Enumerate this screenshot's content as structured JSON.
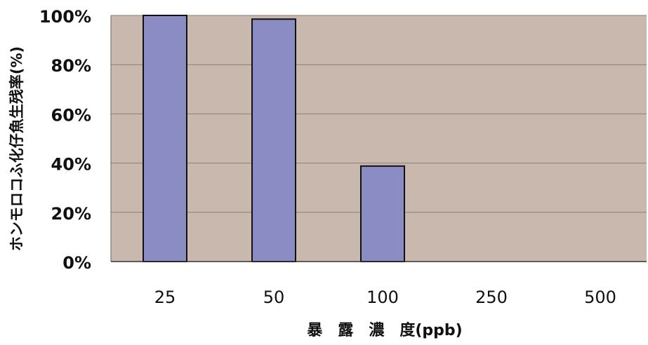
{
  "chart_data": {
    "type": "bar",
    "title": "",
    "categories": [
      "25",
      "50",
      "100",
      "250",
      "500"
    ],
    "values": [
      100,
      98.5,
      38.8,
      0,
      0
    ],
    "ylim": [
      0,
      100
    ],
    "yticks": [
      0,
      20,
      40,
      60,
      80,
      100
    ],
    "ytick_labels": [
      "0%",
      "20%",
      "40%",
      "60%",
      "80%",
      "100%"
    ],
    "ylabel": "ホンモロコふ化仔魚生残率(%)",
    "xlabel": "暴　露　濃　度(ppb)",
    "grid": true,
    "legend": "none",
    "colors": {
      "bar": "#8c8cc4",
      "bar_edge": "#111111",
      "plot_bg": "#c9b8ae",
      "grid": "#8a7f79"
    }
  }
}
